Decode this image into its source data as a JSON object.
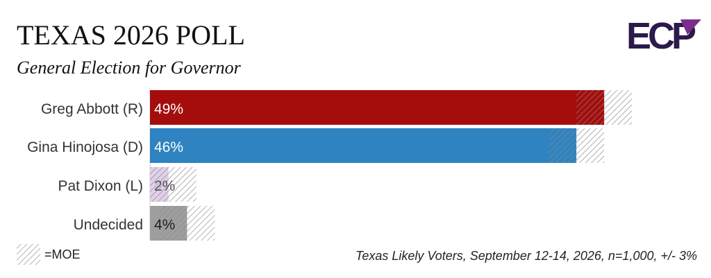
{
  "header": {
    "title": "TEXAS 2026 POLL",
    "subtitle": "General Election for Governor"
  },
  "logo": {
    "text": "ECP",
    "color": "#2b1a4a",
    "accent_color": "#7b2d8e"
  },
  "legend": {
    "moe_label": "=MOE"
  },
  "footer": {
    "source_note": "Texas Likely Voters, September 12-14, 2026, n=1,000, +/- 3%"
  },
  "chart_data": {
    "type": "bar",
    "orientation": "horizontal",
    "categories": [
      "Greg Abbott (R)",
      "Gina Hinojosa (D)",
      "Pat Dixon (L)",
      "Undecided"
    ],
    "values": [
      49,
      46,
      2,
      4
    ],
    "value_labels": [
      "49%",
      "46%",
      "2%",
      "4%"
    ],
    "colors": [
      "#a50d0d",
      "#2e83c0",
      "#e1d0ea",
      "#9e9e9e"
    ],
    "moe": 3,
    "xlim": [
      0,
      60
    ],
    "grid": false,
    "legend_position": "bottom-left"
  }
}
